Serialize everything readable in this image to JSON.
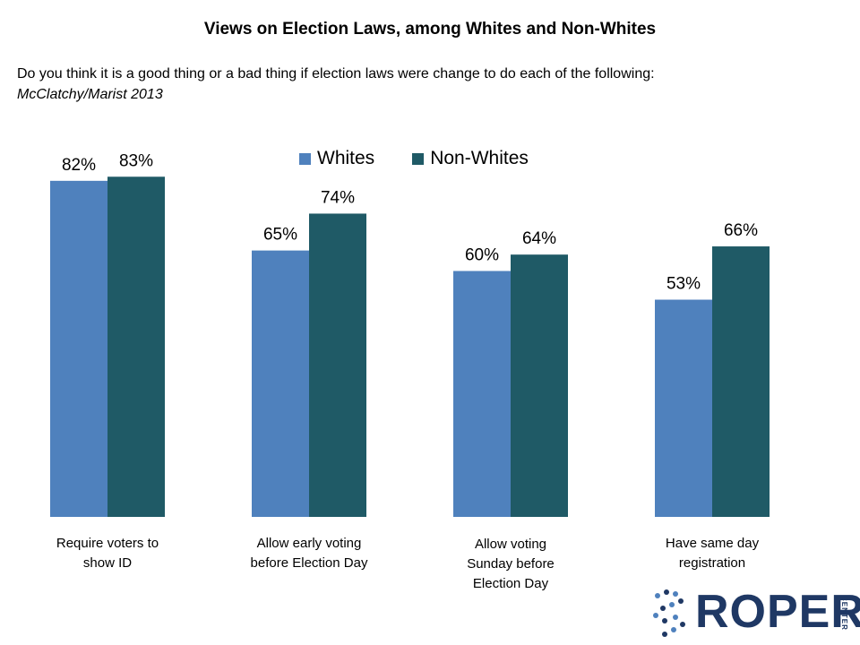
{
  "colors": {
    "whites": "#4f81bd",
    "non_whites": "#1f5a66",
    "logo": "#1f3864"
  },
  "header": {
    "title": "Views on Election Laws, among Whites and Non-Whites",
    "question": "Do you think it is a good thing or a bad thing if election laws were change to do each of the following:",
    "source": "McClatchy/Marist 2013"
  },
  "chart_data": {
    "type": "bar",
    "title": "Views on Election Laws, among Whites and Non-Whites",
    "categories": [
      "Require voters to show ID",
      "Allow early voting before Election Day",
      "Allow voting Sunday before Election Day",
      "Have same day registration"
    ],
    "category_lines": [
      [
        "Require voters to",
        "show ID"
      ],
      [
        "Allow early voting",
        "before Election Day"
      ],
      [
        "Allow voting",
        "Sunday before",
        "Election Day"
      ],
      [
        "Have same day",
        "registration"
      ]
    ],
    "series": [
      {
        "name": "Whites",
        "values": [
          82,
          65,
          60,
          53
        ],
        "labels": [
          "82%",
          "65%",
          "60%",
          "53%"
        ]
      },
      {
        "name": "Non-Whites",
        "values": [
          83,
          74,
          64,
          66
        ],
        "labels": [
          "83%",
          "74%",
          "64%",
          "66%"
        ]
      }
    ],
    "ylim": [
      0,
      100
    ],
    "legend": "top-center",
    "grid": false
  },
  "logo": {
    "text": "ROPER",
    "subtext": "CENTER",
    "icon": "dna-dots-icon"
  }
}
